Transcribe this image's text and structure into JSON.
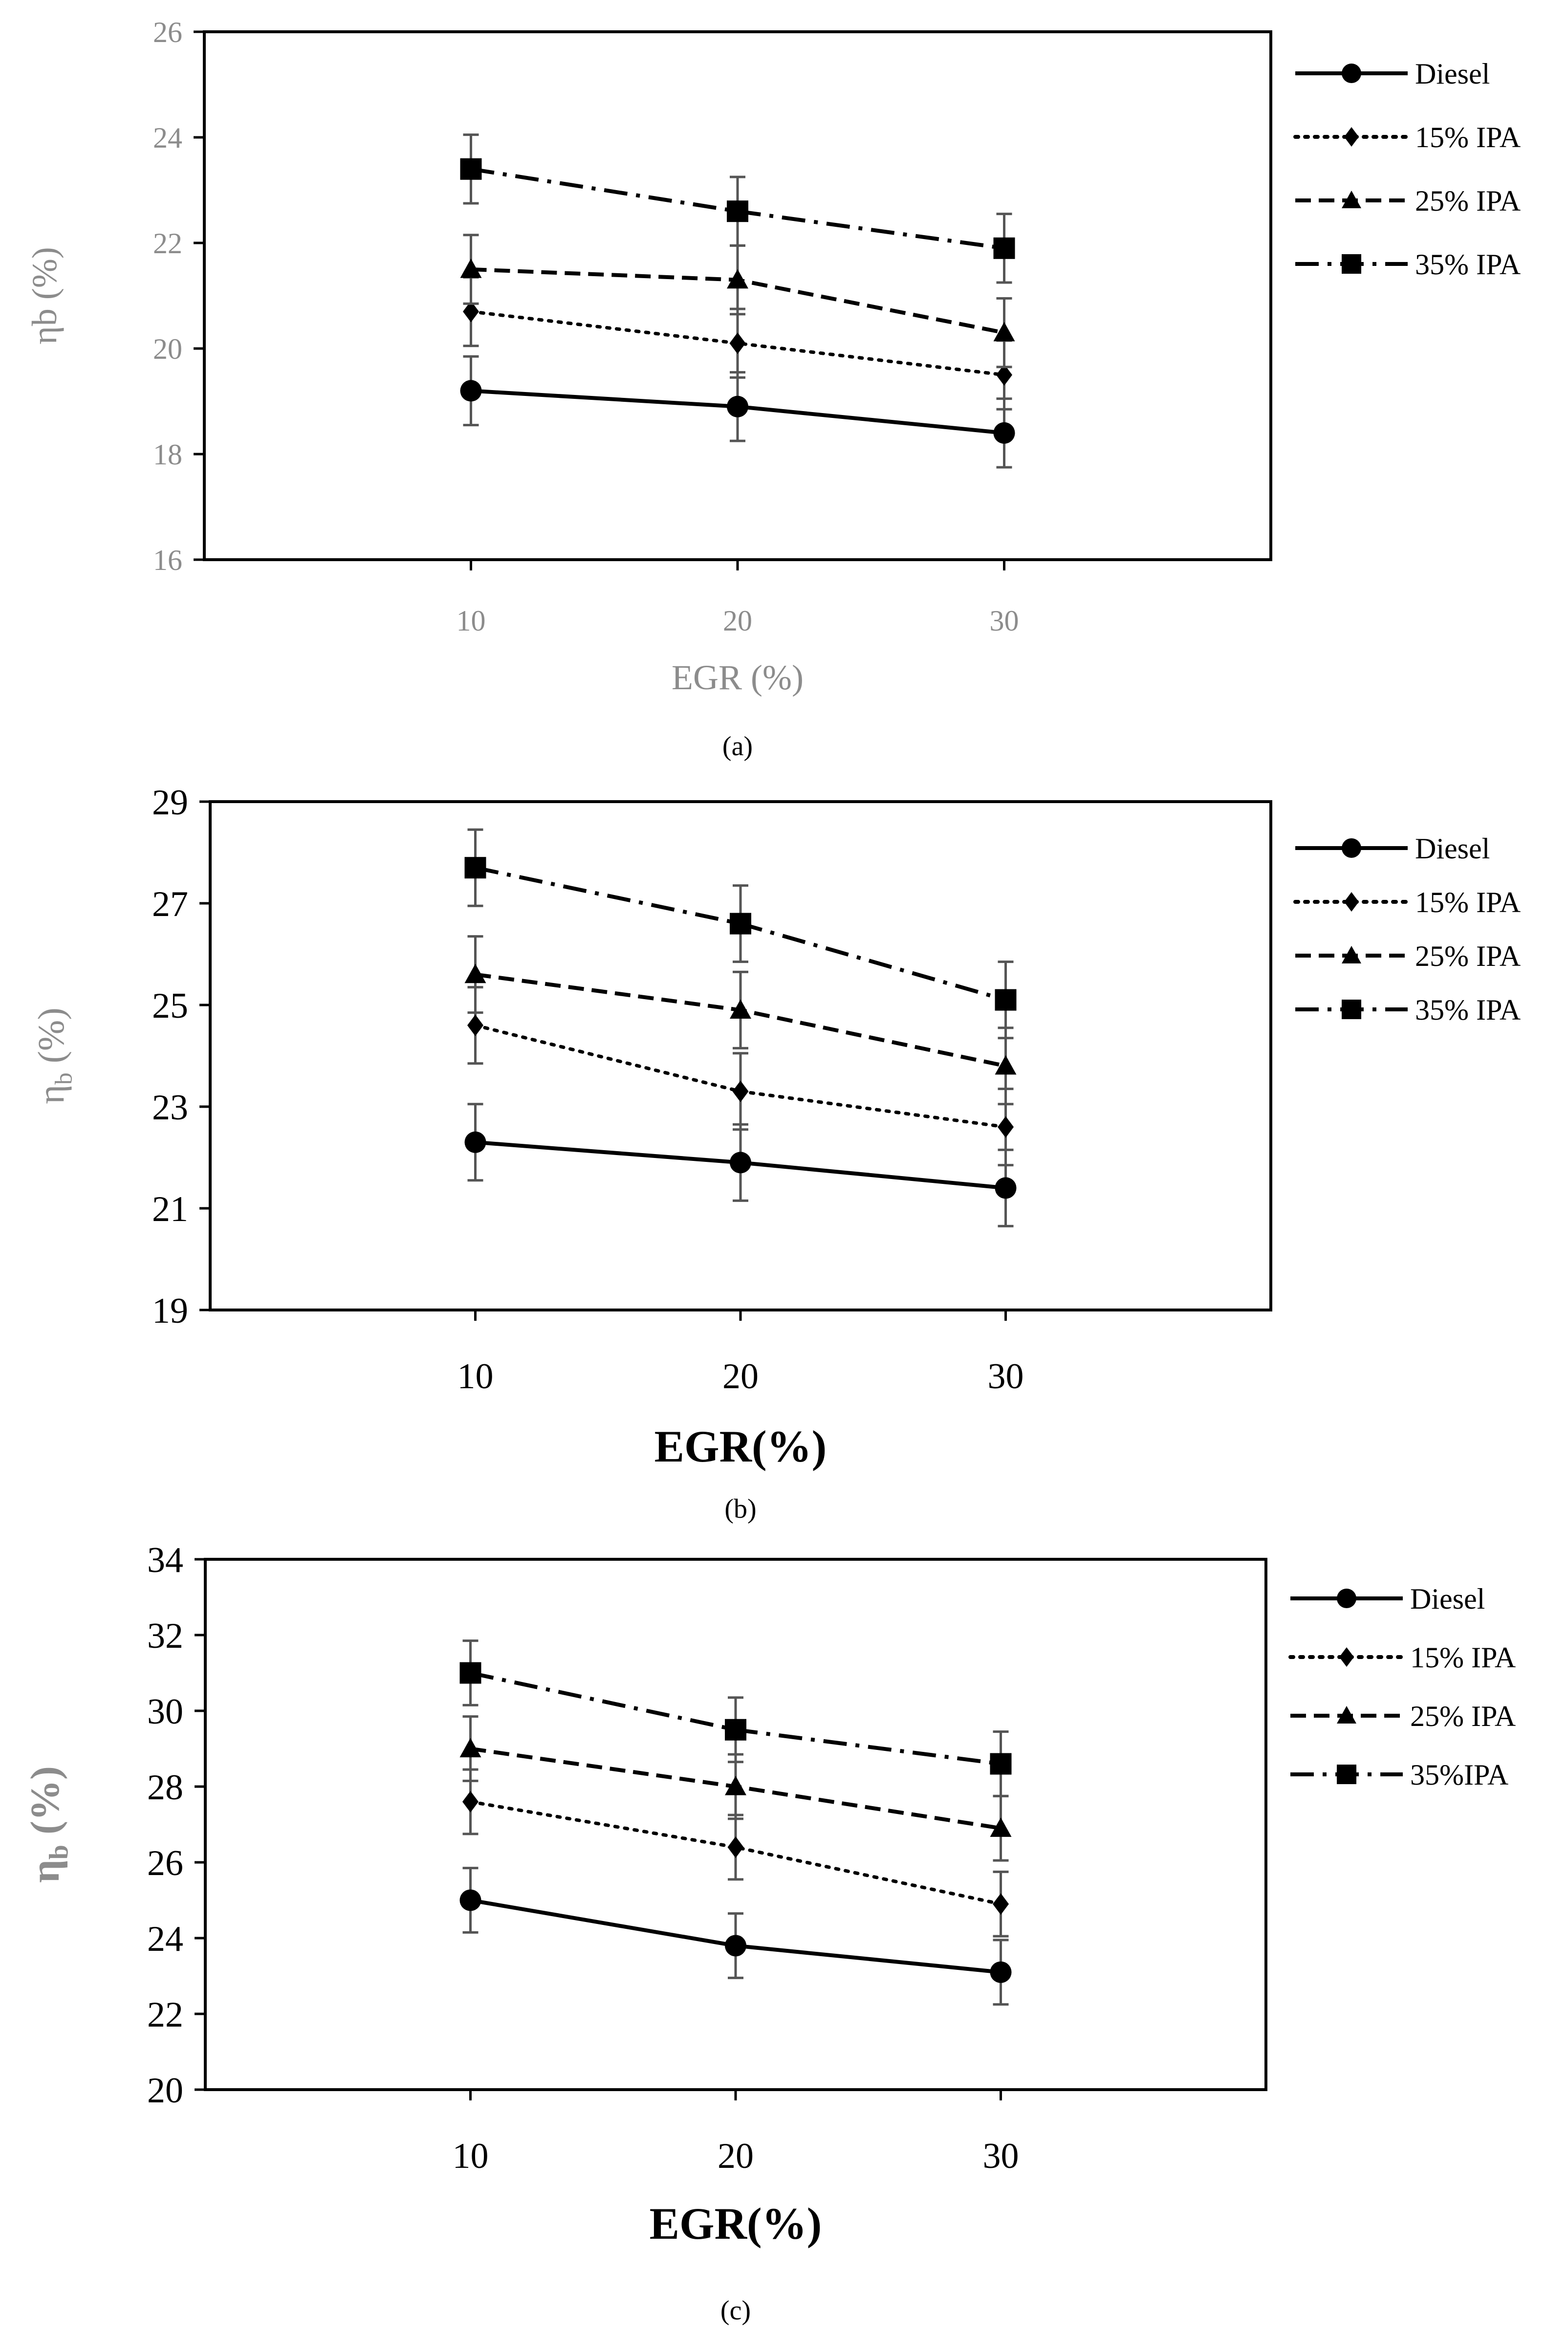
{
  "figure": {
    "panels": [
      "(a)",
      "(b)",
      "(c)"
    ]
  },
  "chart_data": [
    {
      "type": "line",
      "caption": "(a)",
      "title": "",
      "xlabel": "EGR (%)",
      "ylabel": "ηb (%)",
      "x": [
        10,
        20,
        30
      ],
      "x_ticks": [
        "10",
        "20",
        "30"
      ],
      "xlim": [
        0,
        40
      ],
      "ylim": [
        16,
        26
      ],
      "y_ticks": [
        "16",
        "18",
        "20",
        "22",
        "24",
        "26"
      ],
      "y_tick_values": [
        16,
        18,
        20,
        22,
        24,
        26
      ],
      "error": 0.65,
      "grid": false,
      "legend_position": "right",
      "series": [
        {
          "name": "Diesel",
          "values": [
            19.2,
            18.9,
            18.4
          ],
          "line": "solid",
          "marker": "circle"
        },
        {
          "name": "15% IPA",
          "values": [
            20.7,
            20.1,
            19.5
          ],
          "line": "dotted",
          "marker": "diamond"
        },
        {
          "name": "25% IPA",
          "values": [
            21.5,
            21.3,
            20.3
          ],
          "line": "dashed",
          "marker": "triangle"
        },
        {
          "name": "35% IPA",
          "values": [
            23.4,
            22.6,
            21.9
          ],
          "line": "dashdot",
          "marker": "square"
        }
      ]
    },
    {
      "type": "line",
      "caption": "(b)",
      "title": "",
      "xlabel": "EGR(%)",
      "ylabel": "η",
      "ylabel_sub": "b",
      "ylabel_suffix": " (%)",
      "x": [
        10,
        20,
        30
      ],
      "x_ticks": [
        "10",
        "20",
        "30"
      ],
      "xlim": [
        0,
        40
      ],
      "ylim": [
        19,
        29
      ],
      "y_ticks": [
        "19",
        "21",
        "23",
        "25",
        "27",
        "29"
      ],
      "y_tick_values": [
        19,
        21,
        23,
        25,
        27,
        29
      ],
      "error": 0.75,
      "grid": false,
      "legend_position": "right",
      "series": [
        {
          "name": "Diesel",
          "values": [
            22.3,
            21.9,
            21.4
          ],
          "line": "solid",
          "marker": "circle"
        },
        {
          "name": "15% IPA",
          "values": [
            24.6,
            23.3,
            22.6
          ],
          "line": "dotted",
          "marker": "diamond"
        },
        {
          "name": "25% IPA",
          "values": [
            25.6,
            24.9,
            23.8
          ],
          "line": "dashed",
          "marker": "triangle"
        },
        {
          "name": "35% IPA",
          "values": [
            27.7,
            26.6,
            25.1
          ],
          "line": "dashdot",
          "marker": "square"
        }
      ]
    },
    {
      "type": "line",
      "caption": "(c)",
      "title": "",
      "xlabel": "EGR(%)",
      "ylabel": "η",
      "ylabel_sub": "b",
      "ylabel_suffix": " (%)",
      "x": [
        10,
        20,
        30
      ],
      "x_ticks": [
        "10",
        "20",
        "30"
      ],
      "xlim": [
        0,
        40
      ],
      "ylim": [
        20,
        34
      ],
      "y_ticks": [
        "20",
        "22",
        "24",
        "26",
        "28",
        "30",
        "32",
        "34"
      ],
      "y_tick_values": [
        20,
        22,
        24,
        26,
        28,
        30,
        32,
        34
      ],
      "error": 0.85,
      "grid": false,
      "legend_position": "right",
      "series": [
        {
          "name": "Diesel",
          "values": [
            25.0,
            23.8,
            23.1
          ],
          "line": "solid",
          "marker": "circle"
        },
        {
          "name": "15% IPA",
          "values": [
            27.6,
            26.4,
            24.9
          ],
          "line": "dotted",
          "marker": "diamond"
        },
        {
          "name": "25% IPA",
          "values": [
            29.0,
            28.0,
            26.9
          ],
          "line": "dashed",
          "marker": "triangle"
        },
        {
          "name": "35%IPA",
          "values": [
            31.0,
            29.5,
            28.6
          ],
          "line": "dashdot",
          "marker": "square"
        }
      ]
    }
  ],
  "colors": {
    "line": "#000000",
    "error_bar": "#555555",
    "panel_a_text": "#8c8c8c",
    "axis_text_dark": "#000000",
    "ylabel_gray": "#8c8c8c"
  }
}
